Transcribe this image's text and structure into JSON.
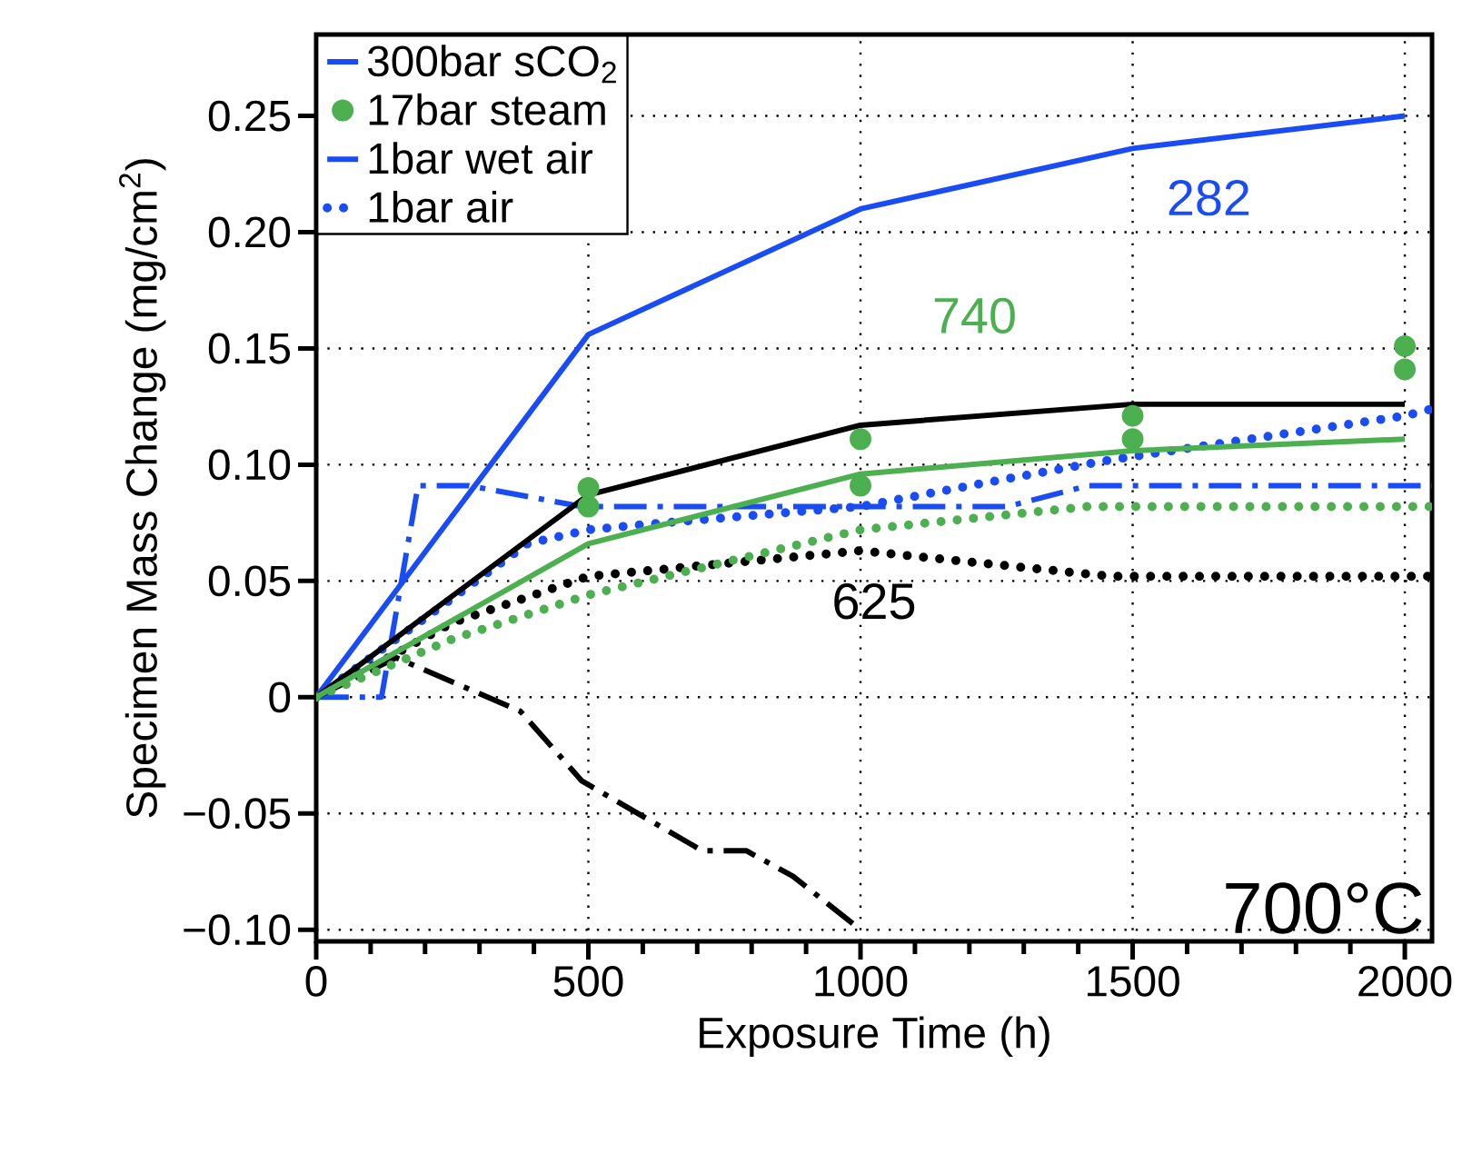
{
  "chart_data": {
    "type": "line",
    "xlabel": "Exposure Time (h)",
    "ylabel": "Specimen Mass Change (mg/cm$^{2}$)",
    "xlim": [
      0,
      2050
    ],
    "ylim": [
      -0.105,
      0.285
    ],
    "xticks": [
      0,
      500,
      1000,
      1500,
      2000
    ],
    "yticks": [
      {
        "value": -0.1,
        "label": "−0.10"
      },
      {
        "value": -0.05,
        "label": "−0.05"
      },
      0,
      {
        "value": 0.05,
        "label": "0.05"
      },
      {
        "value": 0.1,
        "label": "0.10"
      },
      {
        "value": 0.15,
        "label": "0.15"
      },
      {
        "value": 0.2,
        "label": "0.20"
      },
      {
        "value": 0.25,
        "label": "0.25"
      }
    ],
    "grid": true,
    "legend": "top left",
    "series": [
      {
        "name": "300bar sCO$_{2}$",
        "line_style": "solid",
        "color": "#1a4cf5",
        "x": [
          0,
          500,
          1000,
          1500,
          2000
        ],
        "values": [
          0,
          0.156,
          0.21,
          0.236,
          0.25
        ]
      },
      {
        "name": "17bar steam",
        "type": "scatter",
        "color": "#4caf50",
        "x": [
          500,
          500,
          1000,
          1000,
          1500,
          1500,
          2000,
          2000
        ],
        "values": [
          0.09,
          0.082,
          0.111,
          0.091,
          0.121,
          0.111,
          0.151,
          0.141
        ]
      },
      {
        "name": "1bar wet air",
        "line_style": "dashdot",
        "color": "#1a4cf5",
        "x": [
          0,
          120,
          187,
          280,
          488,
          1000,
          1270,
          1418,
          2050
        ],
        "values": [
          0,
          0,
          0.091,
          0.091,
          0.082,
          0.082,
          0.082,
          0.091,
          0.091
        ]
      },
      {
        "name": "1bar air",
        "line_style": "dotted",
        "color": "#1a4cf5",
        "x": [
          0,
          388,
          500,
          589,
          1000,
          1270,
          1458,
          2000,
          2050
        ],
        "values": [
          0,
          0.066,
          0.072,
          0.074,
          0.082,
          0.094,
          0.102,
          0.121,
          0.124
        ]
      },
      {
        "line_style": "solid",
        "color": "#000000",
        "x": [
          0,
          500,
          1000,
          1500,
          2000
        ],
        "values": [
          0,
          0.087,
          0.117,
          0.126,
          0.126
        ]
      },
      {
        "line_style": "dotted",
        "color": "#000000",
        "x": [
          0,
          250,
          500,
          1000,
          1458,
          2000,
          2050
        ],
        "values": [
          0,
          0.032,
          0.052,
          0.063,
          0.052,
          0.052,
          0.052
        ]
      },
      {
        "line_style": "dashdot",
        "color": "#000000",
        "x": [
          0,
          147,
          375,
          488,
          709,
          790,
          876,
          1000
        ],
        "values": [
          0,
          0.017,
          -0.006,
          -0.036,
          -0.066,
          -0.066,
          -0.077,
          -0.1
        ]
      },
      {
        "line_style": "solid",
        "color": "#4caf50",
        "x": [
          0,
          500,
          1000,
          1500,
          2000
        ],
        "values": [
          0,
          0.066,
          0.096,
          0.106,
          0.111
        ]
      },
      {
        "line_style": "dotted",
        "color": "#4caf50",
        "x": [
          0,
          250,
          500,
          1000,
          1418,
          2000,
          2050
        ],
        "values": [
          0,
          0.025,
          0.044,
          0.072,
          0.082,
          0.082,
          0.082
        ]
      }
    ],
    "annotations": [
      "282",
      "740",
      "625",
      "700°C"
    ]
  }
}
